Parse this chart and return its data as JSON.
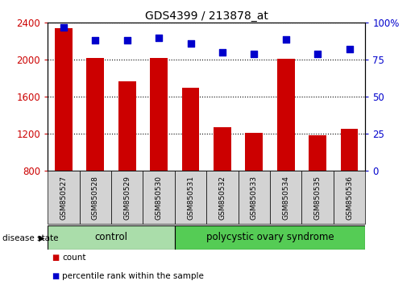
{
  "title": "GDS4399 / 213878_at",
  "samples": [
    "GSM850527",
    "GSM850528",
    "GSM850529",
    "GSM850530",
    "GSM850531",
    "GSM850532",
    "GSM850533",
    "GSM850534",
    "GSM850535",
    "GSM850536"
  ],
  "counts": [
    2340,
    2020,
    1770,
    2020,
    1700,
    1270,
    1210,
    2010,
    1190,
    1255
  ],
  "percentiles": [
    97,
    88,
    88,
    90,
    86,
    80,
    79,
    89,
    79,
    82
  ],
  "ylim_left": [
    800,
    2400
  ],
  "ylim_right": [
    0,
    100
  ],
  "yticks_left": [
    800,
    1200,
    1600,
    2000,
    2400
  ],
  "yticks_right": [
    0,
    25,
    50,
    75,
    100
  ],
  "bar_color": "#cc0000",
  "dot_color": "#0000cc",
  "control_count": 4,
  "pcos_count": 6,
  "control_label": "control",
  "pcos_label": "polycystic ovary syndrome",
  "disease_state_label": "disease state",
  "legend_count_label": "count",
  "legend_percentile_label": "percentile rank within the sample",
  "control_color": "#aaddaa",
  "pcos_color": "#55cc55",
  "group_box_color": "#d3d3d3",
  "bar_width": 0.55
}
